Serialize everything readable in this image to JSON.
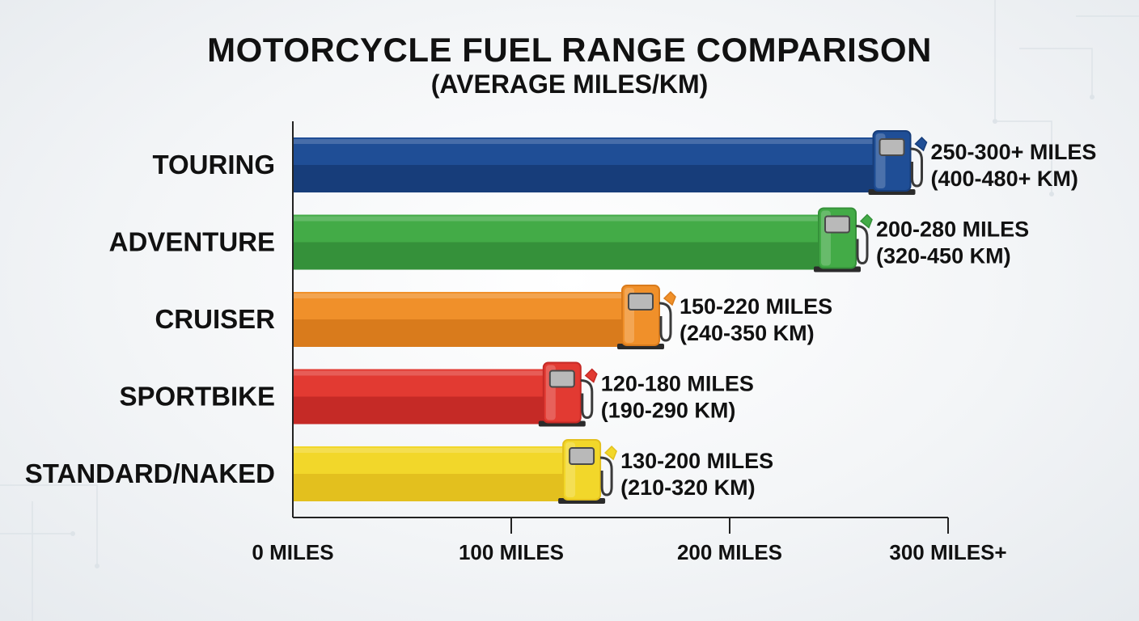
{
  "chart_data": {
    "type": "bar",
    "orientation": "horizontal",
    "title": "MOTORCYCLE FUEL RANGE COMPARISON",
    "subtitle": "(AVERAGE MILES/KM)",
    "xlim": [
      0,
      300
    ],
    "x_ticks": [
      {
        "value": 0,
        "label": "0 MILES"
      },
      {
        "value": 100,
        "label": "100 MILES"
      },
      {
        "value": 200,
        "label": "200 MILES"
      },
      {
        "value": 300,
        "label": "300 MILES+"
      }
    ],
    "grid": false,
    "bars": [
      {
        "category": "TOURING",
        "value": 275,
        "label_miles": "250-300+ MILES",
        "label_km": "(400-480+ KM)",
        "color": "#1f4e96",
        "dark": "#173d7a"
      },
      {
        "category": "ADVENTURE",
        "value": 250,
        "label_miles": "200-280 MILES",
        "label_km": "(320-450 KM)",
        "color": "#43ab47",
        "dark": "#35913a"
      },
      {
        "category": "CRUISER",
        "value": 160,
        "label_miles": "150-220 MILES",
        "label_km": "(240-350 KM)",
        "color": "#f0902a",
        "dark": "#d97b1c"
      },
      {
        "category": "SPORTBIKE",
        "value": 124,
        "label_miles": "120-180 MILES",
        "label_km": "(190-290 KM)",
        "color": "#e23a32",
        "dark": "#c52a26"
      },
      {
        "category": "STANDARD/NAKED",
        "value": 133,
        "label_miles": "130-200 MILES",
        "label_km": "(210-320 KM)",
        "color": "#f2d72a",
        "dark": "#e3c01e"
      }
    ]
  }
}
